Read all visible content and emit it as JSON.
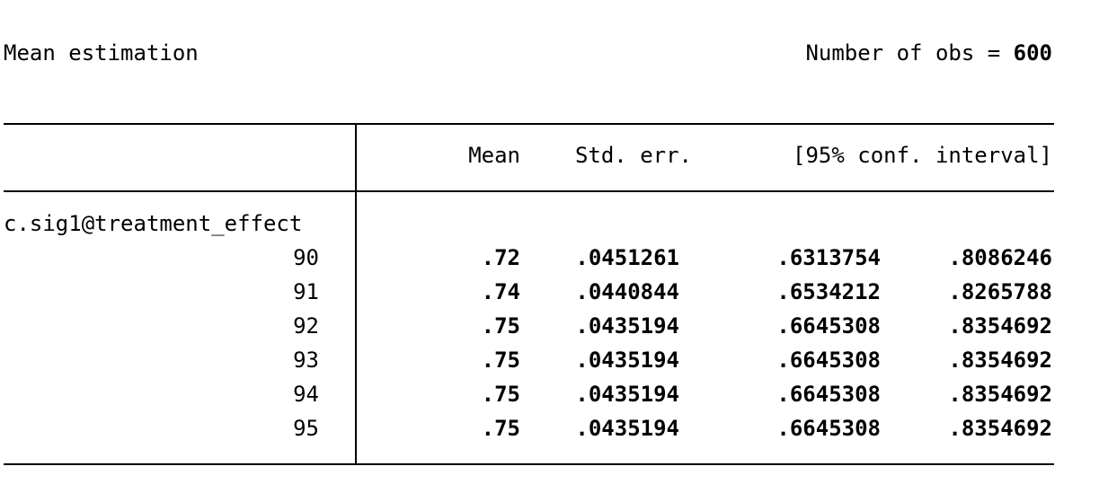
{
  "header": {
    "title": "Mean estimation",
    "obs_label": "Number of obs = ",
    "obs_value": "600"
  },
  "table": {
    "columns": [
      "Mean",
      "Std. err.",
      "[95% conf. interval]"
    ],
    "group_label": "c.sig1@treatment_effect",
    "rows": [
      {
        "label": "90",
        "mean": ".72",
        "se": ".0451261",
        "lo": ".6313754",
        "hi": ".8086246"
      },
      {
        "label": "91",
        "mean": ".74",
        "se": ".0440844",
        "lo": ".6534212",
        "hi": ".8265788"
      },
      {
        "label": "92",
        "mean": ".75",
        "se": ".0435194",
        "lo": ".6645308",
        "hi": ".8354692"
      },
      {
        "label": "93",
        "mean": ".75",
        "se": ".0435194",
        "lo": ".6645308",
        "hi": ".8354692"
      },
      {
        "label": "94",
        "mean": ".75",
        "se": ".0435194",
        "lo": ".6645308",
        "hi": ".8354692"
      },
      {
        "label": "95",
        "mean": ".75",
        "se": ".0435194",
        "lo": ".6645308",
        "hi": ".8354692"
      }
    ]
  }
}
